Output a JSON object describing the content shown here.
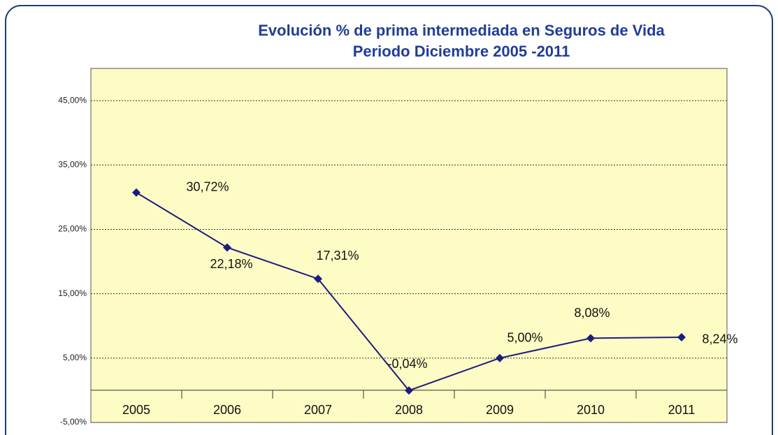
{
  "chart_data": {
    "type": "line",
    "title": "Evolución % de prima intermediada en Seguros de Vida",
    "subtitle": "Periodo Diciembre  2005 -2011",
    "categories": [
      "2005",
      "2006",
      "2007",
      "2008",
      "2009",
      "2010",
      "2011"
    ],
    "series": [
      {
        "color": "#1c1c80",
        "values": [
          30.72,
          22.18,
          17.31,
          -0.04,
          5.0,
          8.08,
          8.24
        ],
        "value_labels": [
          "30,72%",
          "22,18%",
          "17,31%",
          "-0,04%",
          "5,00%",
          "8,08%",
          "8,24%"
        ]
      }
    ],
    "ylim": [
      -5,
      50
    ],
    "yticks": [
      {
        "value": -5,
        "label": "-5,00%"
      },
      {
        "value": 5,
        "label": "5,00%"
      },
      {
        "value": 15,
        "label": "15,00%"
      },
      {
        "value": 25,
        "label": "25,00%"
      },
      {
        "value": 35,
        "label": "35,00%"
      },
      {
        "value": 45,
        "label": "45,00%"
      }
    ],
    "grid": true
  }
}
